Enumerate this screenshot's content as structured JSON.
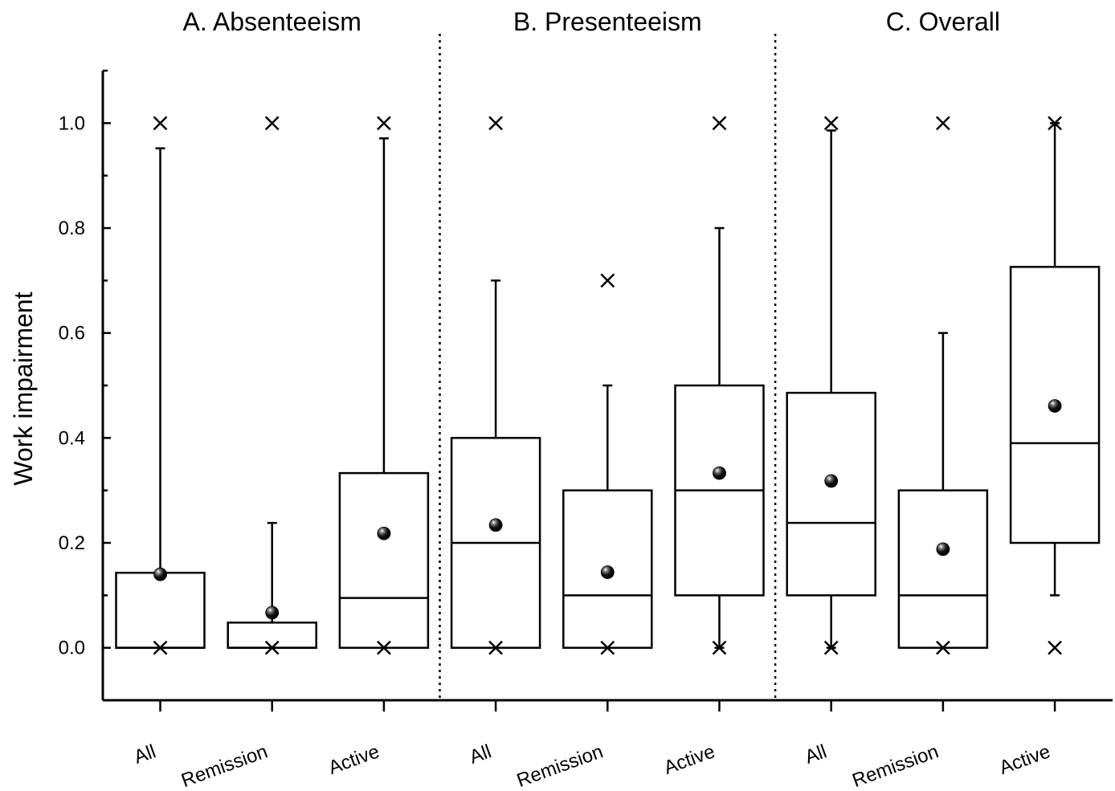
{
  "chart_data": {
    "type": "box",
    "ylabel": "Work impairment",
    "ylim": [
      -0.1,
      1.1
    ],
    "yticks": [
      "0.0",
      "0.2",
      "0.4",
      "0.6",
      "0.8",
      "1.0"
    ],
    "legend": "none",
    "panels": [
      {
        "title": "A. Absenteeism",
        "groups": [
          {
            "label": "All",
            "q1": 0.0,
            "median": 0.0,
            "q3": 0.143,
            "whisker_low": 0.0,
            "whisker_high": 0.952,
            "mean": 0.14,
            "min": 0.0,
            "max": 1.0
          },
          {
            "label": "Remission",
            "q1": 0.0,
            "median": 0.0,
            "q3": 0.048,
            "whisker_low": 0.0,
            "whisker_high": 0.238,
            "mean": 0.067,
            "min": 0.0,
            "max": 1.0
          },
          {
            "label": "Active",
            "q1": 0.0,
            "median": 0.095,
            "q3": 0.333,
            "whisker_low": 0.0,
            "whisker_high": 0.971,
            "mean": 0.218,
            "min": 0.0,
            "max": 1.0
          }
        ]
      },
      {
        "title": "B. Presenteeism",
        "groups": [
          {
            "label": "All",
            "q1": 0.0,
            "median": 0.2,
            "q3": 0.4,
            "whisker_low": 0.0,
            "whisker_high": 0.7,
            "mean": 0.234,
            "min": 0.0,
            "max": 1.0
          },
          {
            "label": "Remission",
            "q1": 0.0,
            "median": 0.1,
            "q3": 0.3,
            "whisker_low": 0.0,
            "whisker_high": 0.5,
            "mean": 0.144,
            "min": 0.0,
            "max": 0.7
          },
          {
            "label": "Active",
            "q1": 0.1,
            "median": 0.3,
            "q3": 0.5,
            "whisker_low": 0.0,
            "whisker_high": 0.8,
            "mean": 0.333,
            "min": 0.0,
            "max": 1.0
          }
        ]
      },
      {
        "title": "C. Overall",
        "groups": [
          {
            "label": "All",
            "q1": 0.1,
            "median": 0.238,
            "q3": 0.486,
            "whisker_low": 0.0,
            "whisker_high": 0.986,
            "mean": 0.318,
            "min": 0.0,
            "max": 1.0
          },
          {
            "label": "Remission",
            "q1": 0.0,
            "median": 0.1,
            "q3": 0.3,
            "whisker_low": 0.0,
            "whisker_high": 0.6,
            "mean": 0.188,
            "min": 0.0,
            "max": 1.0
          },
          {
            "label": "Active",
            "q1": 0.2,
            "median": 0.39,
            "q3": 0.726,
            "whisker_low": 0.1,
            "whisker_high": 1.0,
            "mean": 0.461,
            "min": 0.0,
            "max": 1.0
          }
        ]
      }
    ]
  }
}
